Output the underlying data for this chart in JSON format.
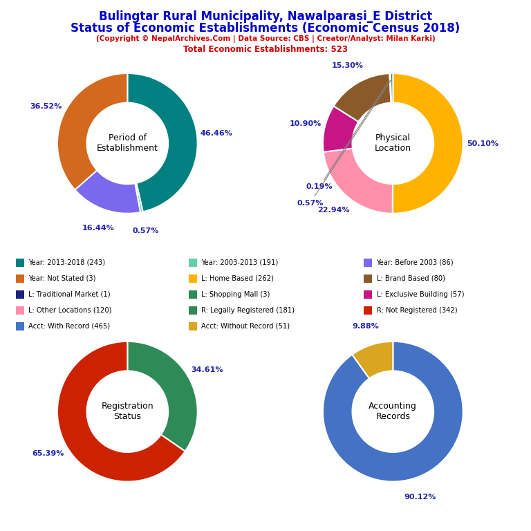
{
  "title1": "Bulingtar Rural Municipality, Nawalparasi_E District",
  "title2": "Status of Economic Establishments (Economic Census 2018)",
  "subtitle": "(Copyright © NepalArchives.Com | Data Source: CBS | Creator/Analyst: Milan Karki)",
  "subtitle2": "Total Economic Establishments: 523",
  "title_color": "#0000CC",
  "subtitle_color": "#CC0000",
  "chart1_label": "Period of\nEstablishment",
  "chart1_values": [
    243,
    191,
    86,
    3
  ],
  "chart1_colors": [
    "#008080",
    "#66CDAA",
    "#7B68EE",
    "#D2691E"
  ],
  "chart1_pct_labels": [
    "46.46%",
    "36.52%",
    "16.44%",
    "0.57%"
  ],
  "chart2_label": "Physical\nLocation",
  "chart2_values": [
    262,
    120,
    57,
    80,
    1,
    3
  ],
  "chart2_colors": [
    "#FFB300",
    "#FF8FAB",
    "#C71585",
    "#8B5A2B",
    "#1A237E",
    "#2E8B57"
  ],
  "chart2_pct_labels": [
    "50.10%",
    "22.94%",
    "10.90%",
    "15.30%",
    "0.19%",
    "0.57%"
  ],
  "chart3_label": "Registration\nStatus",
  "chart3_values": [
    181,
    342
  ],
  "chart3_colors": [
    "#2E8B57",
    "#CC2200"
  ],
  "chart3_pct_labels": [
    "34.61%",
    "65.39%"
  ],
  "chart4_label": "Accounting\nRecords",
  "chart4_values": [
    465,
    51
  ],
  "chart4_colors": [
    "#4472C4",
    "#DAA520"
  ],
  "chart4_pct_labels": [
    "90.12%",
    "9.88%"
  ],
  "legend_data": [
    [
      "Year: 2013-2018 (243)",
      "#008080"
    ],
    [
      "Year: 2003-2013 (191)",
      "#66CDAA"
    ],
    [
      "Year: Before 2003 (86)",
      "#7B68EE"
    ],
    [
      "Year: Not Stated (3)",
      "#D2691E"
    ],
    [
      "L: Home Based (262)",
      "#FFB300"
    ],
    [
      "L: Brand Based (80)",
      "#8B5A2B"
    ],
    [
      "L: Traditional Market (1)",
      "#1A237E"
    ],
    [
      "L: Shopping Mall (3)",
      "#2E8B57"
    ],
    [
      "L: Exclusive Building (57)",
      "#C71585"
    ],
    [
      "L: Other Locations (120)",
      "#FF8FAB"
    ],
    [
      "R: Legally Registered (181)",
      "#2E8B57"
    ],
    [
      "R: Not Registered (342)",
      "#CC2200"
    ],
    [
      "Acct: With Record (465)",
      "#4472C4"
    ],
    [
      "Acct: Without Record (51)",
      "#DAA520"
    ]
  ]
}
